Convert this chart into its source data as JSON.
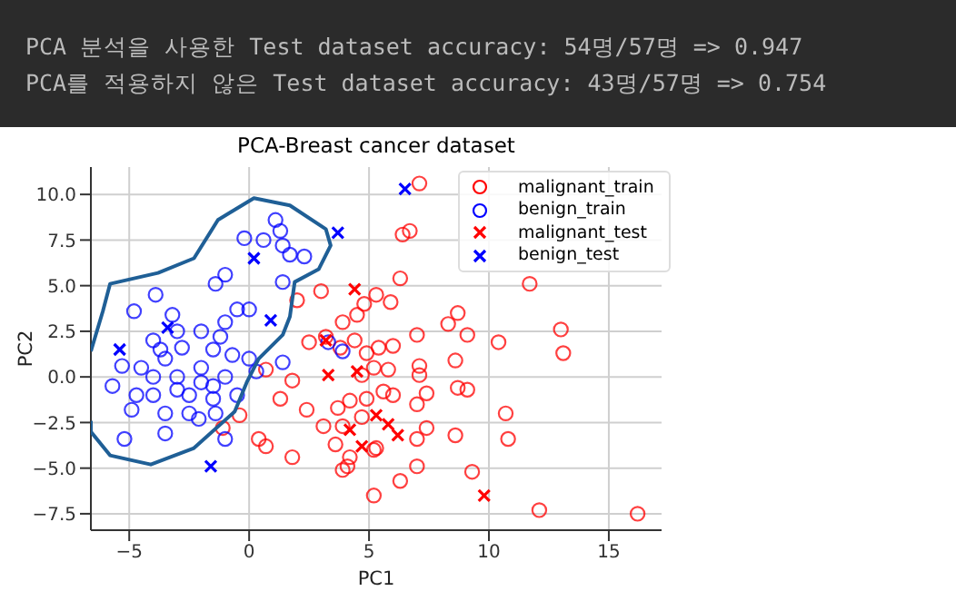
{
  "chart_data": {
    "type": "scatter",
    "title": "PCA-Breast cancer dataset",
    "xlabel": "PC1",
    "ylabel": "PC2",
    "annotations": [
      "PCA 분석을 사용한 Test dataset accuracy: 54명/57명 => 0.947",
      "PCA를 적용하지 않은 Test dataset accuracy: 43명/57명 => 0.754"
    ],
    "xlim": [
      -6.6,
      17.2
    ],
    "ylim": [
      -8.4,
      11.5
    ],
    "xticks": [
      {
        "value": -5,
        "label": "−5"
      },
      0,
      5,
      10,
      15
    ],
    "yticks": [
      {
        "value": -7.5,
        "label": "−7.5"
      },
      {
        "value": -5,
        "label": "−5.0"
      },
      {
        "value": -2.5,
        "label": "−2.5"
      },
      {
        "value": 0,
        "label": "0.0"
      },
      2.5,
      {
        "value": 5,
        "label": "5.0"
      },
      7.5,
      {
        "value": 10,
        "label": "10.0"
      }
    ],
    "grid": true,
    "legend": "top right",
    "series": [
      {
        "name": "malignant_train",
        "color": "#ff0000",
        "marker": "circle",
        "x": [
          7.1,
          6.4,
          6.7,
          6.3,
          11.7,
          13.0,
          13.1,
          10.4,
          9.1,
          8.3,
          8.7,
          7.0,
          8.6,
          7.1,
          7.1,
          8.7,
          9.1,
          7.4,
          7.0,
          10.7,
          10.8,
          8.6,
          7.4,
          7.0,
          7.0,
          9.3,
          6.3,
          5.2,
          12.1,
          16.2,
          5.2,
          4.1,
          5.9,
          5.3,
          4.8,
          4.5,
          3.9,
          6.0,
          5.4,
          4.9,
          4.4,
          3.8,
          5.8,
          5.2,
          4.7,
          5.6,
          6.0,
          4.9,
          4.2,
          3.7,
          4.7,
          3.9,
          5.3,
          4.2,
          2.0,
          3.0,
          2.5,
          3.2,
          0.7,
          1.8,
          1.3,
          2.4,
          3.1,
          1.8,
          0.4,
          -0.4,
          3.6,
          3.9,
          0.7,
          -1.1
        ],
        "values": [
          10.6,
          7.8,
          8.0,
          5.4,
          5.1,
          2.6,
          1.3,
          1.9,
          2.3,
          2.9,
          3.5,
          2.3,
          0.9,
          0.6,
          0.1,
          -0.6,
          -0.7,
          -0.9,
          -1.5,
          -2.0,
          -3.4,
          -3.2,
          -2.8,
          -3.4,
          -4.9,
          -5.2,
          -5.7,
          -6.5,
          -7.3,
          -7.5,
          -4.0,
          -4.9,
          4.1,
          4.5,
          4.0,
          3.4,
          3.0,
          1.7,
          1.6,
          1.3,
          2.0,
          1.6,
          0.4,
          0.5,
          0.1,
          -0.8,
          -1.0,
          -1.2,
          -1.3,
          -1.7,
          -2.2,
          -2.7,
          -3.9,
          -4.4,
          4.2,
          4.7,
          1.9,
          2.2,
          0.4,
          -0.2,
          -1.2,
          -1.8,
          -2.7,
          -4.4,
          -3.4,
          -2.1,
          -3.7,
          -5.1,
          -3.8,
          -2.8
        ]
      },
      {
        "name": "benign_train",
        "color": "#0000ff",
        "marker": "circle",
        "x": [
          1.1,
          1.3,
          1.4,
          1.7,
          2.3,
          0.6,
          -0.2,
          -1.0,
          -1.4,
          1.4,
          -3.9,
          -4.8,
          -5.3,
          -5.7,
          -4.9,
          -5.2,
          -3.5,
          -2.1,
          -1.0,
          -1.4,
          1.4,
          -4,
          -3.5,
          -3,
          -2.5,
          -2,
          -1.5,
          -1,
          -0.5,
          0,
          -3,
          -2,
          -1,
          -0.5,
          0,
          -4.5,
          -4,
          -3.5,
          -2.5,
          -1.5,
          -3,
          -2,
          -4,
          -3.7,
          -2.8,
          -1.2,
          -0.7,
          0.3,
          -1.5,
          -4.7,
          -3.2,
          3.3,
          3.9
        ],
        "values": [
          8.6,
          8.0,
          7.2,
          6.7,
          6.6,
          7.5,
          7.6,
          5.6,
          5.1,
          5.2,
          4.5,
          3.6,
          0.6,
          -0.5,
          -1.8,
          -3.4,
          -3.1,
          -2.3,
          -3.4,
          -2.0,
          0.8,
          2,
          1,
          0,
          -1,
          0.5,
          1.5,
          0,
          -1,
          1,
          2.5,
          2.5,
          3,
          3.7,
          3.7,
          0.5,
          -1,
          -2,
          -2,
          -1.2,
          -0.7,
          -0.3,
          0,
          1.5,
          1.6,
          2.2,
          1.2,
          0.3,
          -0.5,
          -1,
          3.4,
          1.9,
          1.4
        ]
      },
      {
        "name": "malignant_test",
        "color": "#ff0000",
        "marker": "cross",
        "x": [
          4.4,
          3.3,
          4.5,
          5.3,
          5.8,
          6.2,
          4.2,
          4.7,
          9.8,
          3.2
        ],
        "values": [
          4.8,
          0.1,
          0.3,
          -2.1,
          -2.6,
          -3.2,
          -2.9,
          -3.8,
          -6.5,
          2.0
        ]
      },
      {
        "name": "benign_test",
        "color": "#0000ff",
        "marker": "cross",
        "x": [
          -5.4,
          0.2,
          3.7,
          -1.6,
          0.9,
          6.5,
          -3.4
        ],
        "values": [
          1.5,
          6.5,
          7.9,
          -4.9,
          3.1,
          10.3,
          2.7
        ]
      },
      {
        "type": "line",
        "color": "#1f5f96",
        "x": [
          -6.6,
          -6.1,
          -5.8,
          -3.8,
          -2.3,
          -1.3,
          0.2,
          1.7,
          3.2,
          3.4,
          2.9,
          1.9,
          1.7,
          1.4,
          0.4,
          -0.1,
          -0.6,
          -2.3,
          -4.1,
          -5.8,
          -6.6,
          -6.6
        ],
        "values": [
          1.4,
          3.6,
          5.1,
          5.7,
          6.5,
          8.6,
          9.8,
          9.4,
          8.1,
          7.2,
          5.9,
          5.2,
          3.3,
          2.3,
          1.0,
          -0.3,
          -1.9,
          -3.9,
          -4.8,
          -4.3,
          -3.0,
          -2.4
        ]
      }
    ]
  }
}
